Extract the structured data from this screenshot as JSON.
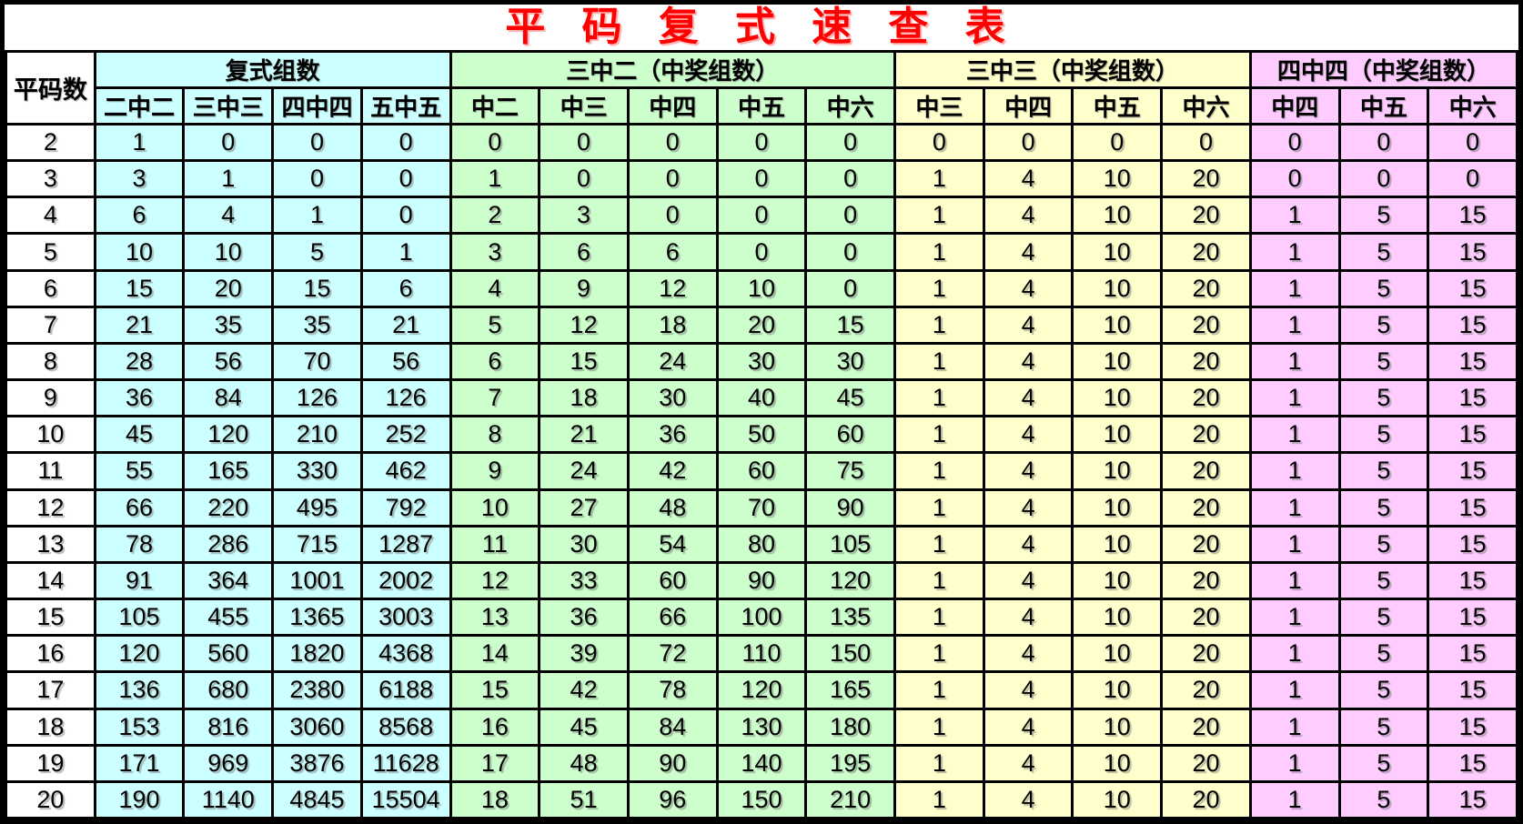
{
  "page": {
    "title": "平 码 复 式 速 查 表"
  },
  "colors": {
    "title_red": "#FF0000",
    "border_black": "#000000",
    "white": "#FFFFFF",
    "cyan": "#CCFFFF",
    "green": "#CCFFCC",
    "yellow": "#FFFFCC",
    "pink": "#FFCCFF"
  },
  "chart_data": {
    "type": "table",
    "title": "平码复式速查表",
    "corner_label": "平码数",
    "column_groups": [
      {
        "label": "复式组数",
        "color": "cyan",
        "columns": [
          "二中二",
          "三中三",
          "四中四",
          "五中五"
        ]
      },
      {
        "label": "三中二（中奖组数）",
        "color": "green",
        "columns": [
          "中二",
          "中三",
          "中四",
          "中五",
          "中六"
        ]
      },
      {
        "label": "三中三（中奖组数）",
        "color": "yellow",
        "columns": [
          "中三",
          "中四",
          "中五",
          "中六"
        ]
      },
      {
        "label": "四中四（中奖组数）",
        "color": "pink",
        "columns": [
          "中四",
          "中五",
          "中六"
        ]
      }
    ],
    "columns": [
      "平码数",
      "二中二",
      "三中三",
      "四中四",
      "五中五",
      "中二",
      "中三",
      "中四",
      "中五",
      "中六",
      "中三",
      "中四",
      "中五",
      "中六",
      "中四",
      "中五",
      "中六"
    ],
    "rows": [
      [
        2,
        1,
        0,
        0,
        0,
        0,
        0,
        0,
        0,
        0,
        0,
        0,
        0,
        0,
        0,
        0,
        0
      ],
      [
        3,
        3,
        1,
        0,
        0,
        1,
        0,
        0,
        0,
        0,
        1,
        4,
        10,
        20,
        0,
        0,
        0
      ],
      [
        4,
        6,
        4,
        1,
        0,
        2,
        3,
        0,
        0,
        0,
        1,
        4,
        10,
        20,
        1,
        5,
        15
      ],
      [
        5,
        10,
        10,
        5,
        1,
        3,
        6,
        6,
        0,
        0,
        1,
        4,
        10,
        20,
        1,
        5,
        15
      ],
      [
        6,
        15,
        20,
        15,
        6,
        4,
        9,
        12,
        10,
        0,
        1,
        4,
        10,
        20,
        1,
        5,
        15
      ],
      [
        7,
        21,
        35,
        35,
        21,
        5,
        12,
        18,
        20,
        15,
        1,
        4,
        10,
        20,
        1,
        5,
        15
      ],
      [
        8,
        28,
        56,
        70,
        56,
        6,
        15,
        24,
        30,
        30,
        1,
        4,
        10,
        20,
        1,
        5,
        15
      ],
      [
        9,
        36,
        84,
        126,
        126,
        7,
        18,
        30,
        40,
        45,
        1,
        4,
        10,
        20,
        1,
        5,
        15
      ],
      [
        10,
        45,
        120,
        210,
        252,
        8,
        21,
        36,
        50,
        60,
        1,
        4,
        10,
        20,
        1,
        5,
        15
      ],
      [
        11,
        55,
        165,
        330,
        462,
        9,
        24,
        42,
        60,
        75,
        1,
        4,
        10,
        20,
        1,
        5,
        15
      ],
      [
        12,
        66,
        220,
        495,
        792,
        10,
        27,
        48,
        70,
        90,
        1,
        4,
        10,
        20,
        1,
        5,
        15
      ],
      [
        13,
        78,
        286,
        715,
        1287,
        11,
        30,
        54,
        80,
        105,
        1,
        4,
        10,
        20,
        1,
        5,
        15
      ],
      [
        14,
        91,
        364,
        1001,
        2002,
        12,
        33,
        60,
        90,
        120,
        1,
        4,
        10,
        20,
        1,
        5,
        15
      ],
      [
        15,
        105,
        455,
        1365,
        3003,
        13,
        36,
        66,
        100,
        135,
        1,
        4,
        10,
        20,
        1,
        5,
        15
      ],
      [
        16,
        120,
        560,
        1820,
        4368,
        14,
        39,
        72,
        110,
        150,
        1,
        4,
        10,
        20,
        1,
        5,
        15
      ],
      [
        17,
        136,
        680,
        2380,
        6188,
        15,
        42,
        78,
        120,
        165,
        1,
        4,
        10,
        20,
        1,
        5,
        15
      ],
      [
        18,
        153,
        816,
        3060,
        8568,
        16,
        45,
        84,
        130,
        180,
        1,
        4,
        10,
        20,
        1,
        5,
        15
      ],
      [
        19,
        171,
        969,
        3876,
        11628,
        17,
        48,
        90,
        140,
        195,
        1,
        4,
        10,
        20,
        1,
        5,
        15
      ],
      [
        20,
        190,
        1140,
        4845,
        15504,
        18,
        51,
        96,
        150,
        210,
        1,
        4,
        10,
        20,
        1,
        5,
        15
      ]
    ]
  }
}
